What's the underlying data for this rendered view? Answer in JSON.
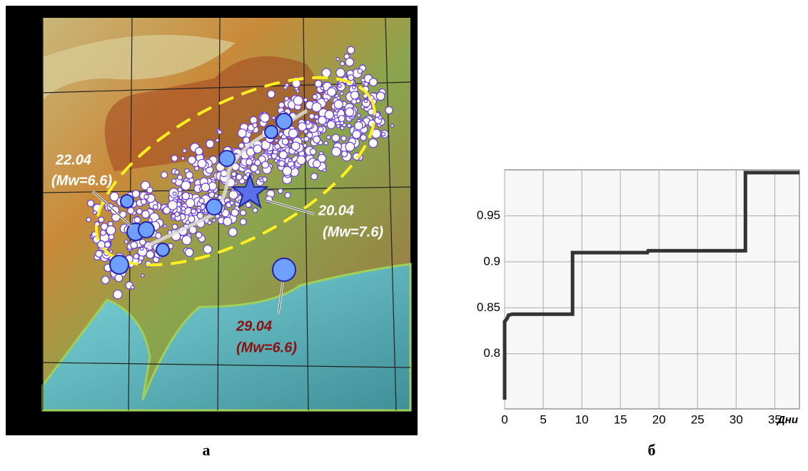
{
  "map": {
    "labels": [
      {
        "date": "22.04",
        "magnitude": "(Mw=6.6)"
      },
      {
        "date": "20.04",
        "magnitude": "(Mw=7.6)"
      },
      {
        "date": "29.04",
        "magnitude": "(Mw=6.6)"
      }
    ],
    "panel_label": "а"
  },
  "chart_data": {
    "type": "line",
    "panel_label": "б",
    "x_label": "Дни",
    "series": [
      {
        "color": "#333333",
        "x": [
          0,
          0,
          0.3,
          0.5,
          1,
          8.8,
          8.8,
          18.5,
          18.6,
          31.2,
          31.2,
          38.2
        ],
        "values": [
          0.75,
          0.835,
          0.838,
          0.842,
          0.843,
          0.843,
          0.91,
          0.91,
          0.912,
          0.912,
          0.997,
          0.997
        ]
      }
    ],
    "xlim": [
      0,
      38.2
    ],
    "xticks": [
      0,
      5,
      10,
      15,
      20,
      25,
      30,
      35
    ],
    "ylim": [
      0.74,
      1.0
    ],
    "yticks": [
      0.8,
      0.85,
      0.9,
      0.95
    ],
    "grid": true
  }
}
